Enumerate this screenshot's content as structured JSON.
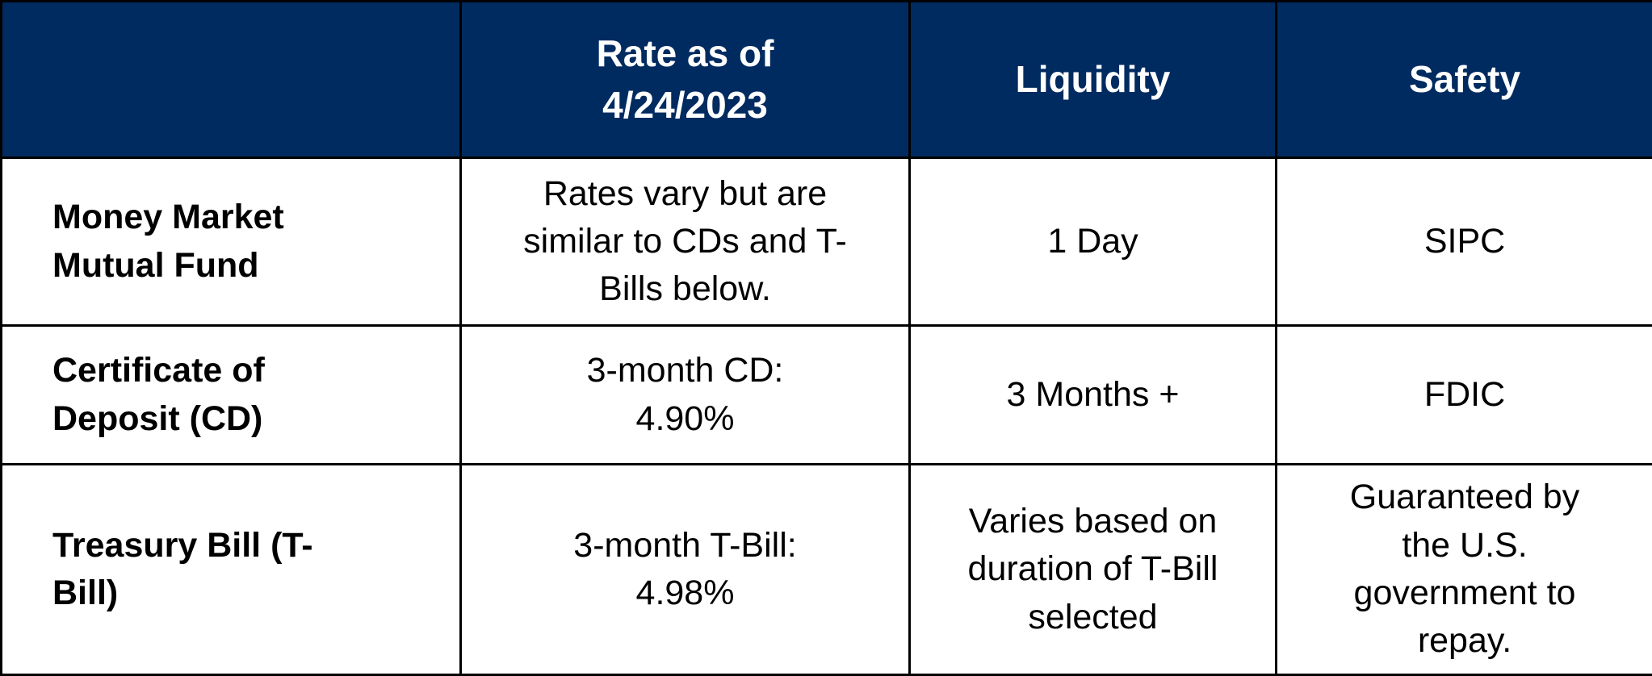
{
  "table": {
    "header": [
      "Rate as of 4/24/2023",
      "Liquidity",
      "Safety"
    ],
    "rows": [
      [
        "Money Market Mutual Fund",
        "Rates vary but are similar to CDs and T-Bills below.",
        "1 Day",
        "SIPC"
      ],
      [
        "Certificate of Deposit (CD)",
        "3-month CD: 4.90%",
        "3 Months +",
        "FDIC"
      ],
      [
        "Treasury Bill (T-Bill)",
        "3-month T-Bill: 4.98%",
        "Varies based on duration of T-Bill selected",
        "Guaranteed by the U.S. government to repay."
      ]
    ]
  }
}
